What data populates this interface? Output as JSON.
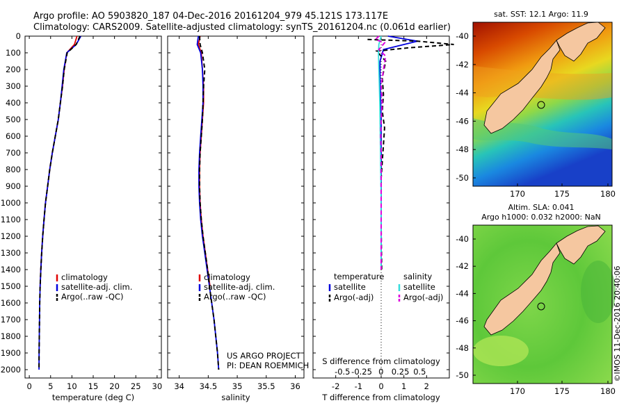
{
  "header": {
    "line1": "Argo profile: AO 5903820_187 04-Dec-2016 20161204_979 45.121S 173.117E",
    "line2": "Climatology: CARS2009. Satellite-adjusted climatology: synTS_20161204.nc (0.061d earlier)"
  },
  "credits": {
    "project": "US ARGO PROJECT",
    "pi": "PI: DEAN ROEMMICH",
    "stamp": "©IMOS 11-Dec-2016 20:40:06"
  },
  "colors": {
    "climatology": "#e00000",
    "satellite": "#0000dd",
    "argo": "#000000",
    "salinity_satellite": "#33dddd",
    "salinity_argo": "#dd00dd",
    "land": "#f5c7a0"
  },
  "chart_data": [
    {
      "type": "line",
      "name": "temperature-profile",
      "xlabel": "temperature (deg C)",
      "ylabel": "",
      "xlim": [
        -1,
        31
      ],
      "ylim": [
        2050,
        0
      ],
      "xticks": [
        0,
        5,
        10,
        15,
        20,
        25,
        30
      ],
      "yticks": [
        0,
        100,
        200,
        300,
        400,
        500,
        600,
        700,
        800,
        900,
        1000,
        1100,
        1200,
        1300,
        1400,
        1500,
        1600,
        1700,
        1800,
        1900,
        2000
      ],
      "legend": [
        "climatology",
        "satellite-adj. clim.",
        "Argo(..raw -QC)"
      ],
      "legend_position": "lower-middle",
      "series": [
        {
          "name": "climatology",
          "style": "solid",
          "x": [
            11.2,
            10.6,
            8.8,
            8.2,
            7.8,
            7.3,
            6.8,
            6.1,
            5.4,
            4.8,
            4.3,
            3.8,
            3.45,
            3.15,
            2.9,
            2.7,
            2.55
          ],
          "y": [
            0,
            50,
            100,
            200,
            300,
            400,
            500,
            600,
            700,
            800,
            900,
            1000,
            1100,
            1200,
            1300,
            1400,
            1500
          ]
        },
        {
          "name": "satellite-adj. clim.",
          "style": "solid",
          "x": [
            12.1,
            11.0,
            8.8,
            8.1,
            7.7,
            7.3,
            6.8,
            6.1,
            5.4,
            4.8,
            4.3,
            3.8,
            3.45,
            3.15,
            2.9,
            2.7,
            2.55,
            2.45,
            2.4,
            2.35,
            2.3,
            2.28
          ],
          "y": [
            0,
            50,
            100,
            200,
            300,
            400,
            500,
            600,
            700,
            800,
            900,
            1000,
            1100,
            1200,
            1300,
            1400,
            1500,
            1600,
            1700,
            1800,
            1900,
            2000
          ]
        },
        {
          "name": "Argo(..raw -QC)",
          "style": "dashed",
          "x": [
            11.9,
            11.0,
            8.9,
            8.2,
            7.8,
            7.3,
            6.8,
            6.1,
            5.4,
            4.8,
            4.3,
            3.8,
            3.45,
            3.15,
            2.9,
            2.7,
            2.55,
            2.45,
            2.4,
            2.35,
            2.3,
            2.28
          ],
          "y": [
            0,
            50,
            100,
            200,
            300,
            400,
            500,
            600,
            700,
            800,
            900,
            1000,
            1100,
            1200,
            1300,
            1400,
            1500,
            1600,
            1700,
            1800,
            1900,
            2000
          ]
        }
      ]
    },
    {
      "type": "line",
      "name": "salinity-profile",
      "xlabel": "salinity",
      "xlim": [
        33.8,
        36.15
      ],
      "ylim": [
        2050,
        0
      ],
      "xticks": [
        34,
        34.5,
        35,
        35.5,
        36
      ],
      "legend": [
        "climatology",
        "satellite-adj. clim.",
        "Argo(..raw -QC)"
      ],
      "legend_position": "lower-middle",
      "series": [
        {
          "name": "climatology",
          "style": "solid",
          "x": [
            34.36,
            34.33,
            34.38,
            34.4,
            34.42,
            34.42,
            34.4,
            34.38,
            34.36,
            34.35,
            34.35,
            34.36,
            34.38,
            34.41,
            34.45,
            34.49,
            34.53
          ],
          "y": [
            0,
            50,
            100,
            200,
            300,
            400,
            500,
            600,
            700,
            800,
            900,
            1000,
            1100,
            1200,
            1300,
            1400,
            1500
          ]
        },
        {
          "name": "satellite-adj. clim.",
          "style": "solid",
          "x": [
            34.33,
            34.31,
            34.37,
            34.4,
            34.41,
            34.41,
            34.39,
            34.37,
            34.35,
            34.34,
            34.34,
            34.35,
            34.37,
            34.4,
            34.44,
            34.48,
            34.52,
            34.56,
            34.6,
            34.63,
            34.66,
            34.68
          ],
          "y": [
            0,
            50,
            100,
            200,
            300,
            400,
            500,
            600,
            700,
            800,
            900,
            1000,
            1100,
            1200,
            1300,
            1400,
            1500,
            1600,
            1700,
            1800,
            1900,
            2000
          ]
        },
        {
          "name": "Argo(..raw -QC)",
          "style": "dashed",
          "x": [
            34.35,
            34.36,
            34.4,
            34.44,
            34.42,
            34.41,
            34.4,
            34.38,
            34.36,
            34.35,
            34.35,
            34.36,
            34.38,
            34.41,
            34.45,
            34.49,
            34.52,
            34.56,
            34.6,
            34.63,
            34.66,
            34.68
          ],
          "y": [
            0,
            50,
            100,
            200,
            300,
            400,
            500,
            600,
            700,
            800,
            900,
            1000,
            1100,
            1200,
            1300,
            1400,
            1500,
            1600,
            1700,
            1800,
            1900,
            2000
          ]
        }
      ]
    },
    {
      "type": "line",
      "name": "difference-profile",
      "xlabel": "T difference from climatology",
      "xlabel2": "S difference from climatology",
      "xlim": [
        -3,
        3
      ],
      "ylim": [
        2050,
        0
      ],
      "xticks": [
        -2,
        -1,
        0,
        1,
        2
      ],
      "xtick_labels": [
        "-2",
        "-1",
        "0",
        "1",
        "2"
      ],
      "xticks_s": [
        "-0.5",
        "-0.25",
        "0",
        "0.25",
        "0.5"
      ],
      "legend_groups": [
        "temperature",
        "salinity"
      ],
      "legend": [
        "satellite",
        "Argo(-adj)",
        "satellite",
        "Argo(-adj)"
      ],
      "series": [
        {
          "name": "temperature satellite",
          "style": "solid",
          "x": [
            0.3,
            1.6,
            0.1,
            -0.05,
            -0.05,
            -0.02,
            0.0,
            0.0,
            0.0,
            0.0,
            0.0,
            0.0,
            0.0,
            0.0,
            0.0,
            0.0
          ],
          "y": [
            0,
            30,
            80,
            150,
            250,
            400,
            500,
            600,
            700,
            800,
            900,
            1000,
            1100,
            1200,
            1300,
            1400
          ]
        },
        {
          "name": "temperature Argo(-adj)",
          "style": "dashed",
          "x": [
            -0.6,
            1.6,
            3.2,
            1.2,
            -0.2,
            0.2,
            0.05,
            0.1,
            0.05,
            0.15,
            0.1,
            0.05,
            0.0,
            0.0,
            0.0,
            0.02
          ],
          "y": [
            20,
            30,
            50,
            70,
            90,
            150,
            250,
            350,
            450,
            550,
            650,
            750,
            850,
            1000,
            1150,
            1400
          ]
        },
        {
          "name": "salinity satellite",
          "style": "solid",
          "x": [
            0.0,
            -0.1,
            -0.12,
            -0.1,
            -0.08,
            -0.06,
            -0.05,
            -0.04,
            -0.03,
            -0.02,
            -0.01,
            0.0,
            0.0,
            0.0,
            0.0
          ],
          "y": [
            0,
            50,
            100,
            200,
            300,
            400,
            500,
            600,
            700,
            800,
            900,
            1000,
            1100,
            1200,
            1400
          ]
        },
        {
          "name": "salinity Argo(-adj)",
          "style": "dashed",
          "x": [
            -0.1,
            -0.25,
            0.15,
            -0.1,
            0.2,
            0.1,
            0.0,
            0.05,
            0.0,
            -0.02,
            0.0,
            0.0,
            0.0,
            0.0,
            0.0
          ],
          "y": [
            0,
            20,
            40,
            80,
            120,
            200,
            300,
            400,
            500,
            600,
            700,
            900,
            1100,
            1300,
            1400
          ]
        }
      ]
    }
  ],
  "maps": {
    "sst": {
      "title": "sat. SST: 12.1  Argo: 11.9",
      "xticks": [
        "170",
        "175",
        "180"
      ],
      "yticks": [
        "-40",
        "-42",
        "-44",
        "-46",
        "-48",
        "-50"
      ]
    },
    "sla": {
      "title1": "Altim. SLA: 0.041",
      "title2": "Argo h1000: 0.032 h2000: NaN",
      "xticks": [
        "170",
        "175",
        "180"
      ],
      "yticks": [
        "-40",
        "-42",
        "-44",
        "-46",
        "-48",
        "-50"
      ]
    }
  },
  "depth_tick_labels": [
    "0",
    "100",
    "200",
    "300",
    "400",
    "500",
    "600",
    "700",
    "800",
    "900",
    "1000",
    "1100",
    "1200",
    "1300",
    "1400",
    "1500",
    "1600",
    "1700",
    "1800",
    "1900",
    "2000"
  ]
}
